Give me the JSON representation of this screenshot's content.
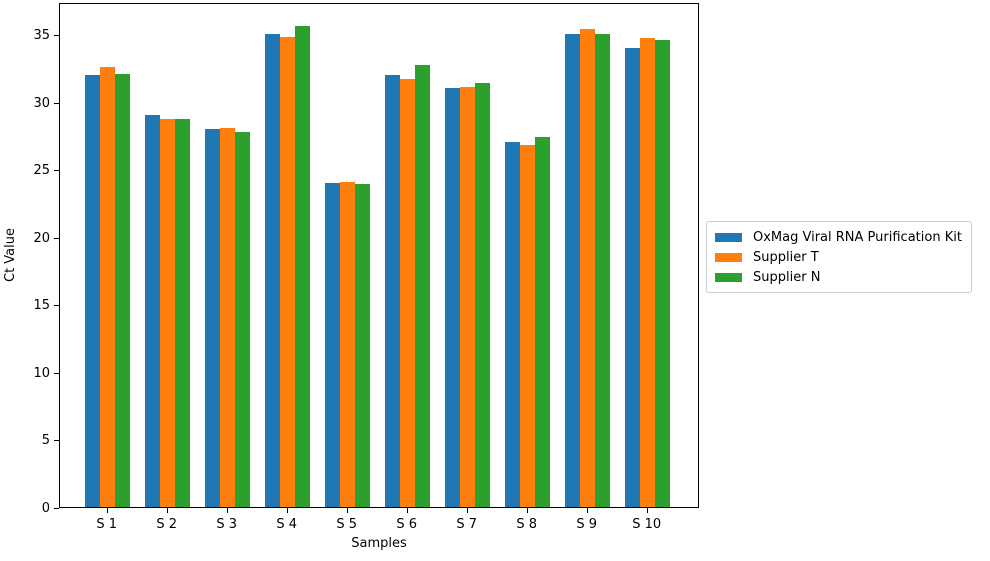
{
  "chart_data": {
    "type": "bar",
    "title": "",
    "xlabel": "Samples",
    "ylabel": "Ct Value",
    "categories": [
      "S 1",
      "S 2",
      "S 3",
      "S 4",
      "S 5",
      "S 6",
      "S 7",
      "S 8",
      "S 9",
      "S 10"
    ],
    "series": [
      {
        "name": "OxMag Viral RNA Purification Kit",
        "slug": "oxmag-viral-rna-purification-kit",
        "color": "#1f77b4",
        "values": [
          32,
          29,
          28,
          35,
          24,
          32,
          31,
          27,
          35,
          34
        ]
      },
      {
        "name": "Supplier T",
        "slug": "supplier-t",
        "color": "#ff7f0e",
        "values": [
          32.6,
          28.7,
          28.1,
          34.8,
          24.1,
          31.7,
          31.1,
          26.8,
          35.4,
          34.7
        ]
      },
      {
        "name": "Supplier N",
        "slug": "supplier-n",
        "color": "#2ca02c",
        "values": [
          32.1,
          28.75,
          27.8,
          35.6,
          23.9,
          32.7,
          31.4,
          27.4,
          35.0,
          34.6
        ]
      }
    ],
    "ylim": [
      0,
      37.4
    ],
    "yticks": [
      0,
      5,
      10,
      15,
      20,
      25,
      30,
      35
    ],
    "grid": false,
    "legend_position": "right",
    "colors": {
      "spine": "#000000",
      "tick": "#000000",
      "legend_border": "#cccccc",
      "background": "#ffffff"
    }
  }
}
